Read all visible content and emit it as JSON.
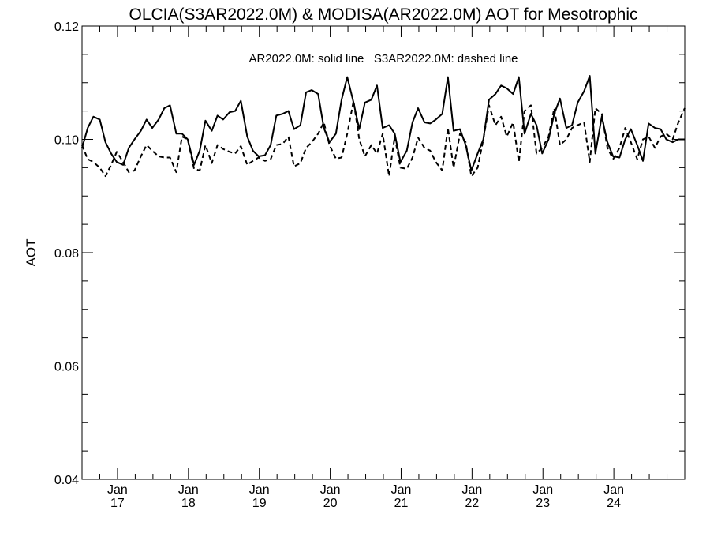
{
  "chart_data": {
    "type": "line",
    "title": "OLCIA(S3AR2022.0M) & MODISA(AR2022.0M)  AOT for Mesotrophic",
    "annotation": "AR2022.0M: solid line   S3AR2022.0M: dashed line",
    "ylabel": "AOT",
    "xlabel": "",
    "xlim": [
      2016.5,
      2025.0
    ],
    "ylim": [
      0.04,
      0.12
    ],
    "y_ticks": [
      0.04,
      0.06,
      0.08,
      0.1,
      0.12
    ],
    "y_tick_labels": [
      "0.04",
      "0.06",
      "0.08",
      "0.10",
      "0.12"
    ],
    "x_ticks": [
      {
        "x": 2017.0,
        "label": [
          "Jan",
          "17"
        ]
      },
      {
        "x": 2018.0,
        "label": [
          "Jan",
          "18"
        ]
      },
      {
        "x": 2019.0,
        "label": [
          "Jan",
          "19"
        ]
      },
      {
        "x": 2020.0,
        "label": [
          "Jan",
          "20"
        ]
      },
      {
        "x": 2021.0,
        "label": [
          "Jan",
          "21"
        ]
      },
      {
        "x": 2022.0,
        "label": [
          "Jan",
          "22"
        ]
      },
      {
        "x": 2023.0,
        "label": [
          "Jan",
          "23"
        ]
      },
      {
        "x": 2024.0,
        "label": [
          "Jan",
          "24"
        ]
      }
    ],
    "x_minor_step": 0.25,
    "y_minor_step": 0.005,
    "grid": false,
    "series": [
      {
        "style": "solid",
        "points": [
          [
            2016.5,
            0.0985
          ],
          [
            2016.58,
            0.102
          ],
          [
            2016.66,
            0.104
          ],
          [
            2016.75,
            0.1035
          ],
          [
            2016.83,
            0.0995
          ],
          [
            2016.91,
            0.0975
          ],
          [
            2016.99,
            0.096
          ],
          [
            2017.08,
            0.0955
          ],
          [
            2017.16,
            0.0985
          ],
          [
            2017.24,
            0.1
          ],
          [
            2017.33,
            0.1015
          ],
          [
            2017.41,
            0.1035
          ],
          [
            2017.49,
            0.102
          ],
          [
            2017.58,
            0.1035
          ],
          [
            2017.66,
            0.1055
          ],
          [
            2017.74,
            0.106
          ],
          [
            2017.83,
            0.101
          ],
          [
            2017.91,
            0.101
          ],
          [
            2017.99,
            0.1
          ],
          [
            2018.08,
            0.0955
          ],
          [
            2018.16,
            0.098
          ],
          [
            2018.24,
            0.1033
          ],
          [
            2018.33,
            0.1015
          ],
          [
            2018.41,
            0.1042
          ],
          [
            2018.49,
            0.1035
          ],
          [
            2018.58,
            0.1048
          ],
          [
            2018.66,
            0.105
          ],
          [
            2018.74,
            0.1068
          ],
          [
            2018.83,
            0.1005
          ],
          [
            2018.91,
            0.098
          ],
          [
            2018.99,
            0.097
          ],
          [
            2019.08,
            0.0972
          ],
          [
            2019.16,
            0.099
          ],
          [
            2019.24,
            0.1042
          ],
          [
            2019.33,
            0.1045
          ],
          [
            2019.41,
            0.105
          ],
          [
            2019.49,
            0.1018
          ],
          [
            2019.58,
            0.1025
          ],
          [
            2019.66,
            0.1083
          ],
          [
            2019.74,
            0.1087
          ],
          [
            2019.83,
            0.108
          ],
          [
            2019.91,
            0.102
          ],
          [
            2019.99,
            0.0995
          ],
          [
            2020.08,
            0.101
          ],
          [
            2020.16,
            0.107
          ],
          [
            2020.24,
            0.111
          ],
          [
            2020.33,
            0.1065
          ],
          [
            2020.41,
            0.1018
          ],
          [
            2020.49,
            0.1065
          ],
          [
            2020.58,
            0.107
          ],
          [
            2020.66,
            0.1095
          ],
          [
            2020.74,
            0.102
          ],
          [
            2020.83,
            0.1025
          ],
          [
            2020.91,
            0.101
          ],
          [
            2020.99,
            0.096
          ],
          [
            2021.08,
            0.098
          ],
          [
            2021.16,
            0.103
          ],
          [
            2021.24,
            0.1055
          ],
          [
            2021.33,
            0.103
          ],
          [
            2021.41,
            0.1028
          ],
          [
            2021.49,
            0.1035
          ],
          [
            2021.58,
            0.1045
          ],
          [
            2021.66,
            0.111
          ],
          [
            2021.74,
            0.1015
          ],
          [
            2021.83,
            0.1018
          ],
          [
            2021.91,
            0.099
          ],
          [
            2021.99,
            0.0945
          ],
          [
            2022.08,
            0.0975
          ],
          [
            2022.16,
            0.1
          ],
          [
            2022.24,
            0.107
          ],
          [
            2022.33,
            0.108
          ],
          [
            2022.41,
            0.1095
          ],
          [
            2022.49,
            0.109
          ],
          [
            2022.58,
            0.108
          ],
          [
            2022.66,
            0.111
          ],
          [
            2022.74,
            0.101
          ],
          [
            2022.83,
            0.1045
          ],
          [
            2022.91,
            0.1025
          ],
          [
            2022.99,
            0.0975
          ],
          [
            2023.08,
            0.1
          ],
          [
            2023.16,
            0.1045
          ],
          [
            2023.24,
            0.1072
          ],
          [
            2023.33,
            0.102
          ],
          [
            2023.41,
            0.1025
          ],
          [
            2023.49,
            0.1065
          ],
          [
            2023.58,
            0.1085
          ],
          [
            2023.66,
            0.1112
          ],
          [
            2023.74,
            0.0975
          ],
          [
            2023.83,
            0.104
          ],
          [
            2023.91,
            0.0995
          ],
          [
            2023.99,
            0.097
          ],
          [
            2024.08,
            0.0968
          ],
          [
            2024.16,
            0.1
          ],
          [
            2024.24,
            0.1018
          ],
          [
            2024.33,
            0.099
          ],
          [
            2024.41,
            0.0962
          ],
          [
            2024.49,
            0.1028
          ],
          [
            2024.58,
            0.102
          ],
          [
            2024.66,
            0.1018
          ],
          [
            2024.74,
            0.1
          ],
          [
            2024.83,
            0.0995
          ],
          [
            2024.91,
            0.1
          ],
          [
            2025.0,
            0.1
          ]
        ]
      },
      {
        "style": "dashed",
        "points": [
          [
            2016.5,
            0.099
          ],
          [
            2016.58,
            0.0965
          ],
          [
            2016.66,
            0.096
          ],
          [
            2016.75,
            0.095
          ],
          [
            2016.83,
            0.0935
          ],
          [
            2016.91,
            0.0955
          ],
          [
            2016.99,
            0.0978
          ],
          [
            2017.08,
            0.096
          ],
          [
            2017.16,
            0.0942
          ],
          [
            2017.24,
            0.0945
          ],
          [
            2017.33,
            0.097
          ],
          [
            2017.41,
            0.099
          ],
          [
            2017.49,
            0.098
          ],
          [
            2017.58,
            0.097
          ],
          [
            2017.66,
            0.0968
          ],
          [
            2017.74,
            0.0968
          ],
          [
            2017.83,
            0.0942
          ],
          [
            2017.91,
            0.1005
          ],
          [
            2017.99,
            0.1
          ],
          [
            2018.08,
            0.0948
          ],
          [
            2018.16,
            0.0945
          ],
          [
            2018.24,
            0.099
          ],
          [
            2018.33,
            0.0958
          ],
          [
            2018.41,
            0.099
          ],
          [
            2018.49,
            0.0983
          ],
          [
            2018.58,
            0.0978
          ],
          [
            2018.66,
            0.0975
          ],
          [
            2018.74,
            0.0988
          ],
          [
            2018.83,
            0.0955
          ],
          [
            2018.91,
            0.0962
          ],
          [
            2018.99,
            0.0968
          ],
          [
            2019.08,
            0.0962
          ],
          [
            2019.16,
            0.0965
          ],
          [
            2019.24,
            0.099
          ],
          [
            2019.33,
            0.0992
          ],
          [
            2019.41,
            0.1005
          ],
          [
            2019.49,
            0.0952
          ],
          [
            2019.58,
            0.0958
          ],
          [
            2019.66,
            0.0985
          ],
          [
            2019.74,
            0.0995
          ],
          [
            2019.83,
            0.101
          ],
          [
            2019.91,
            0.103
          ],
          [
            2019.99,
            0.099
          ],
          [
            2020.08,
            0.0966
          ],
          [
            2020.16,
            0.0968
          ],
          [
            2020.24,
            0.101
          ],
          [
            2020.33,
            0.1068
          ],
          [
            2020.41,
            0.1
          ],
          [
            2020.49,
            0.097
          ],
          [
            2020.58,
            0.099
          ],
          [
            2020.66,
            0.0975
          ],
          [
            2020.74,
            0.101
          ],
          [
            2020.83,
            0.0935
          ],
          [
            2020.91,
            0.1005
          ],
          [
            2020.99,
            0.095
          ],
          [
            2021.08,
            0.0948
          ],
          [
            2021.16,
            0.0968
          ],
          [
            2021.24,
            0.1003
          ],
          [
            2021.33,
            0.0985
          ],
          [
            2021.41,
            0.098
          ],
          [
            2021.49,
            0.096
          ],
          [
            2021.58,
            0.0945
          ],
          [
            2021.66,
            0.102
          ],
          [
            2021.74,
            0.095
          ],
          [
            2021.83,
            0.101
          ],
          [
            2021.91,
            0.0995
          ],
          [
            2021.99,
            0.0935
          ],
          [
            2022.08,
            0.095
          ],
          [
            2022.16,
            0.1
          ],
          [
            2022.24,
            0.106
          ],
          [
            2022.33,
            0.1025
          ],
          [
            2022.41,
            0.104
          ],
          [
            2022.49,
            0.1005
          ],
          [
            2022.58,
            0.103
          ],
          [
            2022.66,
            0.096
          ],
          [
            2022.74,
            0.105
          ],
          [
            2022.83,
            0.106
          ],
          [
            2022.91,
            0.0975
          ],
          [
            2022.99,
            0.0985
          ],
          [
            2023.08,
            0.1005
          ],
          [
            2023.16,
            0.1055
          ],
          [
            2023.24,
            0.099
          ],
          [
            2023.33,
            0.1
          ],
          [
            2023.41,
            0.102
          ],
          [
            2023.49,
            0.1025
          ],
          [
            2023.58,
            0.103
          ],
          [
            2023.66,
            0.096
          ],
          [
            2023.74,
            0.1055
          ],
          [
            2023.83,
            0.1045
          ],
          [
            2023.91,
            0.0985
          ],
          [
            2023.99,
            0.0965
          ],
          [
            2024.08,
            0.0985
          ],
          [
            2024.16,
            0.102
          ],
          [
            2024.24,
            0.0995
          ],
          [
            2024.33,
            0.0965
          ],
          [
            2024.41,
            0.1
          ],
          [
            2024.49,
            0.1005
          ],
          [
            2024.58,
            0.0985
          ],
          [
            2024.66,
            0.1005
          ],
          [
            2024.74,
            0.101
          ],
          [
            2024.83,
            0.1
          ],
          [
            2024.91,
            0.103
          ],
          [
            2025.0,
            0.1055
          ]
        ]
      }
    ]
  }
}
